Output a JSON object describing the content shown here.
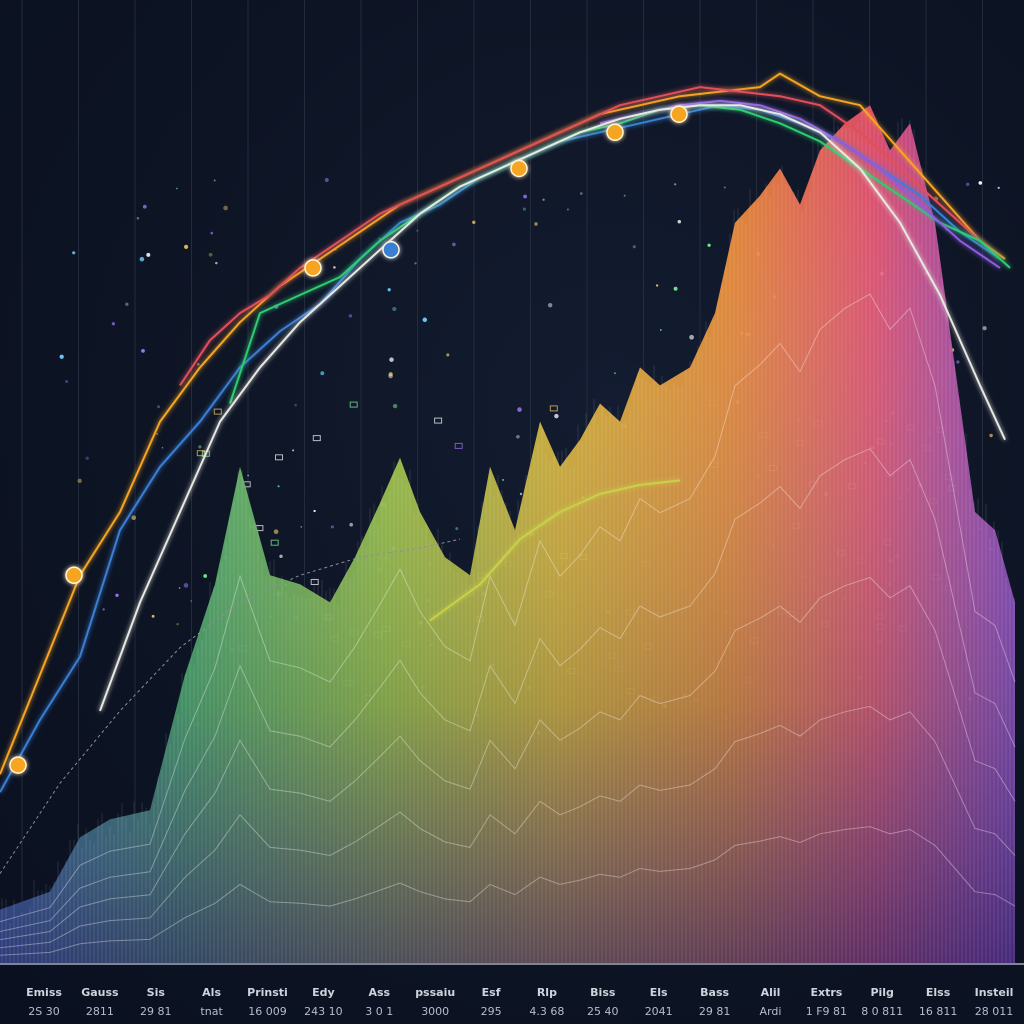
{
  "chart_data": {
    "type": "area",
    "title": "",
    "xlabel": "",
    "ylabel": "",
    "x_tick_labels": [
      {
        "top": "Emiss",
        "bottom": "2S 30"
      },
      {
        "top": "Gauss",
        "bottom": "2811"
      },
      {
        "top": "Sis",
        "bottom": "29 81"
      },
      {
        "top": "Als",
        "bottom": "tnat"
      },
      {
        "top": "Prinsti",
        "bottom": "16 009"
      },
      {
        "top": "Edy",
        "bottom": "243 10"
      },
      {
        "top": "Ass",
        "bottom": "3 0 1"
      },
      {
        "top": "pssaiu",
        "bottom": "3000"
      },
      {
        "top": "Esf",
        "bottom": "295"
      },
      {
        "top": "Rlp",
        "bottom": "4.3 68"
      },
      {
        "top": "Biss",
        "bottom": "25 40"
      },
      {
        "top": "Els",
        "bottom": "2041"
      },
      {
        "top": "Bass",
        "bottom": "29 81"
      },
      {
        "top": "Alil",
        "bottom": "Ardi"
      },
      {
        "top": "Extrs",
        "bottom": "1 F9 81"
      },
      {
        "top": "Pilg",
        "bottom": "8 0 811"
      },
      {
        "top": "Elss",
        "bottom": "16 811"
      },
      {
        "top": "Insteil",
        "bottom": "28 011"
      }
    ],
    "grid": true,
    "legend": "none",
    "area_series": {
      "x": [
        0,
        50,
        80,
        110,
        150,
        185,
        215,
        240,
        270,
        300,
        330,
        355,
        380,
        400,
        420,
        445,
        470,
        490,
        515,
        540,
        560,
        580,
        600,
        620,
        640,
        660,
        690,
        715,
        735,
        760,
        780,
        800,
        820,
        845,
        870,
        890,
        910,
        935,
        955,
        975,
        995,
        1015
      ],
      "y": [
        0.06,
        0.08,
        0.14,
        0.16,
        0.17,
        0.32,
        0.42,
        0.55,
        0.43,
        0.42,
        0.4,
        0.45,
        0.51,
        0.56,
        0.5,
        0.45,
        0.43,
        0.55,
        0.48,
        0.6,
        0.55,
        0.58,
        0.62,
        0.6,
        0.66,
        0.64,
        0.66,
        0.72,
        0.82,
        0.85,
        0.88,
        0.84,
        0.9,
        0.93,
        0.95,
        0.9,
        0.93,
        0.82,
        0.66,
        0.5,
        0.48,
        0.4
      ]
    },
    "line_series": [
      {
        "color": "#f5a524",
        "x": [
          0,
          40,
          80,
          120,
          160,
          200,
          240,
          280,
          320,
          360,
          400,
          440,
          480,
          520,
          560,
          600,
          640,
          680,
          720,
          760,
          780,
          820,
          860,
          900,
          940,
          980,
          1005
        ],
        "y": [
          0.21,
          0.32,
          0.43,
          0.5,
          0.6,
          0.66,
          0.71,
          0.75,
          0.78,
          0.81,
          0.84,
          0.86,
          0.88,
          0.9,
          0.92,
          0.94,
          0.95,
          0.96,
          0.965,
          0.97,
          0.985,
          0.96,
          0.95,
          0.9,
          0.85,
          0.8,
          0.78
        ]
      },
      {
        "color": "#e0505a",
        "x": [
          180,
          210,
          240,
          270,
          300,
          340,
          380,
          420,
          460,
          500,
          540,
          580,
          620,
          660,
          700,
          740,
          780,
          820,
          860,
          900,
          940,
          980,
          1000
        ],
        "y": [
          0.64,
          0.69,
          0.72,
          0.74,
          0.77,
          0.8,
          0.83,
          0.85,
          0.87,
          0.89,
          0.91,
          0.93,
          0.95,
          0.96,
          0.97,
          0.965,
          0.96,
          0.95,
          0.92,
          0.88,
          0.84,
          0.8,
          0.78
        ]
      },
      {
        "color": "#3a7fd5",
        "x": [
          0,
          40,
          80,
          120,
          160,
          200,
          240,
          280,
          320,
          360,
          400,
          440,
          480,
          520,
          560,
          600,
          640,
          680,
          720,
          760,
          800,
          840,
          880,
          920,
          960,
          1000
        ],
        "y": [
          0.19,
          0.27,
          0.34,
          0.48,
          0.55,
          0.6,
          0.66,
          0.7,
          0.73,
          0.78,
          0.82,
          0.84,
          0.87,
          0.89,
          0.91,
          0.92,
          0.93,
          0.94,
          0.95,
          0.945,
          0.93,
          0.91,
          0.88,
          0.85,
          0.81,
          0.78
        ]
      },
      {
        "color": "#2ecc71",
        "x": [
          230,
          260,
          300,
          340,
          380,
          420,
          460,
          500,
          540,
          580,
          620,
          660,
          700,
          740,
          780,
          820,
          860,
          900,
          940,
          980,
          1010
        ],
        "y": [
          0.62,
          0.72,
          0.74,
          0.76,
          0.8,
          0.83,
          0.86,
          0.88,
          0.9,
          0.92,
          0.93,
          0.945,
          0.95,
          0.945,
          0.93,
          0.91,
          0.88,
          0.85,
          0.82,
          0.8,
          0.77
        ]
      },
      {
        "color": "#8e5be0",
        "x": [
          600,
          640,
          680,
          720,
          760,
          800,
          840,
          880,
          920,
          960,
          1000
        ],
        "y": [
          0.93,
          0.94,
          0.95,
          0.955,
          0.95,
          0.935,
          0.91,
          0.88,
          0.84,
          0.8,
          0.77
        ]
      },
      {
        "color": "#e8e8e0",
        "x": [
          100,
          140,
          180,
          220,
          260,
          300,
          340,
          380,
          420,
          460,
          500,
          540,
          580,
          620,
          660,
          700,
          740,
          780,
          820,
          860,
          900,
          940,
          980,
          1005
        ],
        "y": [
          0.28,
          0.4,
          0.5,
          0.6,
          0.66,
          0.71,
          0.75,
          0.79,
          0.83,
          0.86,
          0.88,
          0.9,
          0.92,
          0.935,
          0.945,
          0.95,
          0.95,
          0.94,
          0.92,
          0.88,
          0.82,
          0.74,
          0.64,
          0.58
        ]
      },
      {
        "color": "#c7d14a",
        "x": [
          430,
          480,
          520,
          560,
          600,
          640,
          680
        ],
        "y": [
          0.38,
          0.42,
          0.47,
          0.5,
          0.52,
          0.53,
          0.535
        ]
      },
      {
        "color": "#8a8f9a",
        "x": [
          0,
          60,
          120,
          180,
          240,
          300,
          360,
          420,
          460
        ],
        "y": [
          0.1,
          0.2,
          0.28,
          0.35,
          0.4,
          0.43,
          0.45,
          0.46,
          0.47
        ]
      }
    ],
    "markers": [
      {
        "x": 74,
        "y": 0.43,
        "color": "#f5a524"
      },
      {
        "x": 18,
        "y": 0.22,
        "color": "#f5a524"
      },
      {
        "x": 313,
        "y": 0.77,
        "color": "#f5a524"
      },
      {
        "x": 519,
        "y": 0.88,
        "color": "#f5a524"
      },
      {
        "x": 615,
        "y": 0.92,
        "color": "#f5a524"
      },
      {
        "x": 679,
        "y": 0.94,
        "color": "#f5a524"
      },
      {
        "x": 391,
        "y": 0.79,
        "color": "#3a7fd5"
      }
    ]
  }
}
